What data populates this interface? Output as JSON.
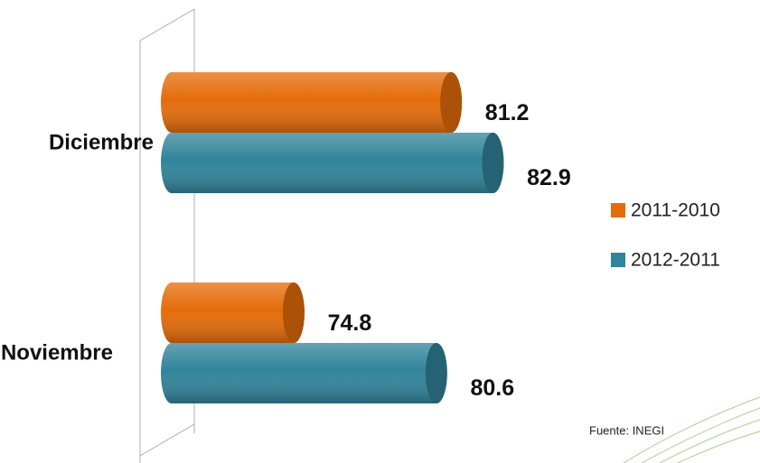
{
  "chart_data": {
    "type": "bar",
    "orientation": "horizontal",
    "categories": [
      "Diciembre",
      "Noviembre"
    ],
    "series": [
      {
        "name": "2011-2010",
        "color": "#e46c0a",
        "values": [
          81.2,
          74.8
        ]
      },
      {
        "name": "2012-2011",
        "color": "#31849b",
        "values": [
          82.9,
          80.6
        ]
      }
    ],
    "xlim": [
      69.4,
      87
    ],
    "legend": "right",
    "source": "Fuente: INEGI"
  }
}
